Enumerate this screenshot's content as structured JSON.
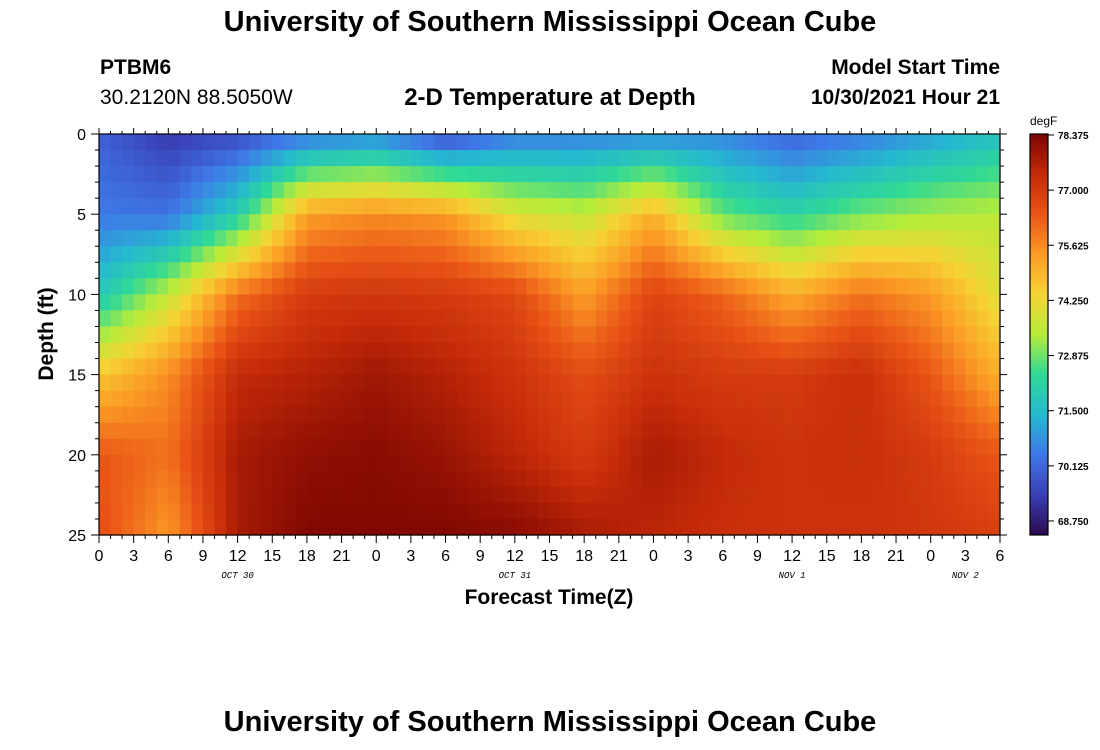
{
  "page": {
    "title_top": "University of Southern Mississippi Ocean Cube",
    "title_bottom": "University of Southern Mississippi Ocean Cube",
    "station_id": "PTBM6",
    "coordinates": "30.2120N  88.5050W",
    "chart_title": "2-D Temperature at Depth",
    "model_start_label": "Model Start Time",
    "model_start_value": "10/30/2021 Hour 21"
  },
  "colors": {
    "colormap": [
      "#2b0a4e",
      "#3a3fb5",
      "#3f78e8",
      "#25b9cf",
      "#2fd996",
      "#b6ec3a",
      "#f6d334",
      "#fb9b25",
      "#ea5517",
      "#c42a09",
      "#7a0501"
    ]
  },
  "chart_data": {
    "type": "heatmap",
    "title": "2-D Temperature at Depth",
    "xlabel": "Forecast Time(Z)",
    "ylabel": "Depth (ft)",
    "x_tick_hours": [
      0,
      3,
      6,
      9,
      12,
      15,
      18,
      21,
      24,
      27,
      30,
      33,
      36,
      39,
      42,
      45,
      48,
      51,
      54,
      57,
      60,
      63,
      66,
      69,
      72,
      75,
      78
    ],
    "x_tick_labels": [
      "0",
      "3",
      "6",
      "9",
      "12",
      "15",
      "18",
      "21",
      "0",
      "3",
      "6",
      "9",
      "12",
      "15",
      "18",
      "21",
      "0",
      "3",
      "6",
      "9",
      "12",
      "15",
      "18",
      "21",
      "0",
      "3",
      "6"
    ],
    "xlim": [
      0,
      78
    ],
    "day_labels": [
      {
        "text": "OCT 30",
        "hour": 12
      },
      {
        "text": "OCT 31",
        "hour": 36
      },
      {
        "text": "NOV 1",
        "hour": 60
      },
      {
        "text": "NOV 2",
        "hour": 75
      }
    ],
    "y_ticks": [
      0,
      5,
      10,
      15,
      20,
      25
    ],
    "ylim": [
      0,
      25
    ],
    "y_inverted": true,
    "colorbar": {
      "units": "degF",
      "ticks": [
        78.375,
        77.0,
        75.625,
        74.25,
        72.875,
        71.5,
        70.125,
        68.75
      ],
      "tick_labels": [
        "78.375",
        "77.000",
        "75.625",
        "74.250",
        "72.875",
        "71.500",
        "70.125",
        "68.750"
      ],
      "range": [
        68.4,
        78.4
      ]
    },
    "grid": {
      "hours": [
        0,
        6,
        12,
        18,
        24,
        30,
        36,
        42,
        48,
        54,
        60,
        66,
        72,
        78
      ],
      "depths_ft": [
        0,
        5,
        10,
        15,
        20,
        25
      ],
      "temperature_degF": [
        [
          70.0,
          69.3,
          69.6,
          70.3,
          70.6,
          69.5,
          70.4,
          70.5,
          70.6,
          70.6,
          70.0,
          70.4,
          71.0,
          71.6
        ],
        [
          70.4,
          70.3,
          72.0,
          75.3,
          75.6,
          75.4,
          74.0,
          73.6,
          75.0,
          72.8,
          72.2,
          72.9,
          73.3,
          73.5
        ],
        [
          71.8,
          73.6,
          76.0,
          77.0,
          77.1,
          77.0,
          76.7,
          75.3,
          76.8,
          76.2,
          75.1,
          76.0,
          75.4,
          74.0
        ],
        [
          74.6,
          75.6,
          77.4,
          77.6,
          77.9,
          77.6,
          77.2,
          76.6,
          77.2,
          77.0,
          77.0,
          77.3,
          76.4,
          75.0
        ],
        [
          76.4,
          76.0,
          77.8,
          78.1,
          78.2,
          78.0,
          77.5,
          77.0,
          77.8,
          77.4,
          77.2,
          77.3,
          77.0,
          76.4
        ],
        [
          76.6,
          75.4,
          77.8,
          78.3,
          78.3,
          78.3,
          78.2,
          77.8,
          77.5,
          77.3,
          77.2,
          77.2,
          77.1,
          76.9
        ]
      ]
    }
  }
}
